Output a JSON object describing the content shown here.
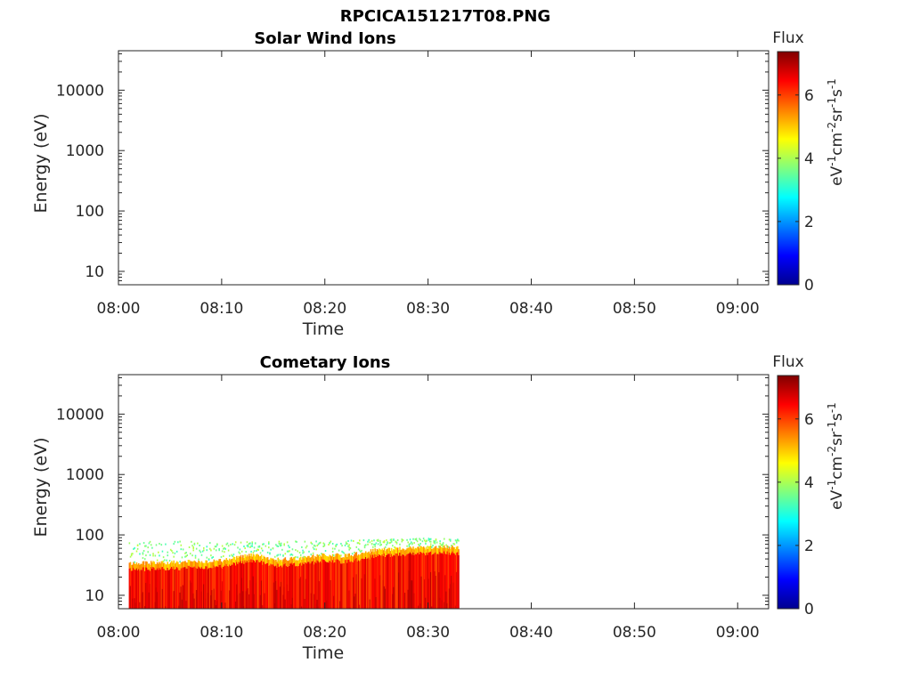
{
  "figure": {
    "title": "RPCICA151217T08.PNG"
  },
  "chart_data": [
    {
      "type": "heatmap",
      "title": "Solar Wind Ions",
      "xlabel": "Time",
      "ylabel": "Energy (eV)",
      "x_ticks": [
        "08:00",
        "08:10",
        "08:20",
        "08:30",
        "08:40",
        "08:50",
        "09:00"
      ],
      "xlim": [
        "08:00",
        "09:03"
      ],
      "y_scale": "log",
      "y_ticks": [
        10,
        100,
        1000,
        10000
      ],
      "y_tick_labels": [
        "10",
        "100",
        "1000",
        "10000"
      ],
      "ylim": [
        6,
        45000
      ],
      "colorbar": {
        "label": "Flux",
        "units_label": "eV-1cm-2sr-1s-1",
        "ticks": [
          "0",
          "2",
          "4",
          "6"
        ],
        "range": [
          0,
          7.4
        ],
        "colormap": "jet"
      },
      "data": []
    },
    {
      "type": "heatmap",
      "title": "Cometary Ions",
      "xlabel": "Time",
      "ylabel": "Energy (eV)",
      "x_ticks": [
        "08:00",
        "08:10",
        "08:20",
        "08:30",
        "08:40",
        "08:50",
        "09:00"
      ],
      "xlim": [
        "08:00",
        "09:03"
      ],
      "y_scale": "log",
      "y_ticks": [
        10,
        100,
        1000,
        10000
      ],
      "y_tick_labels": [
        "10",
        "100",
        "1000",
        "10000"
      ],
      "ylim": [
        6,
        45000
      ],
      "colorbar": {
        "label": "Flux",
        "units_label": "eV-1cm-2sr-1s-1",
        "ticks": [
          "0",
          "2",
          "4",
          "6"
        ],
        "range": [
          0,
          7.4
        ],
        "colormap": "jet"
      },
      "data": {
        "time_start": "08:01",
        "time_end": "08:33",
        "energy_min": 6,
        "profile": [
          {
            "time": "08:01",
            "upper_energy": 27,
            "sparse_upper_energy": 80
          },
          {
            "time": "08:05",
            "upper_energy": 28,
            "sparse_upper_energy": 80
          },
          {
            "time": "08:10",
            "upper_energy": 30,
            "sparse_upper_energy": 75
          },
          {
            "time": "08:13",
            "upper_energy": 38,
            "sparse_upper_energy": 80
          },
          {
            "time": "08:15",
            "upper_energy": 31,
            "sparse_upper_energy": 78
          },
          {
            "time": "08:18",
            "upper_energy": 33,
            "sparse_upper_energy": 80
          },
          {
            "time": "08:20",
            "upper_energy": 38,
            "sparse_upper_energy": 78
          },
          {
            "time": "08:22",
            "upper_energy": 36,
            "sparse_upper_energy": 80
          },
          {
            "time": "08:25",
            "upper_energy": 45,
            "sparse_upper_energy": 85
          },
          {
            "time": "08:28",
            "upper_energy": 48,
            "sparse_upper_energy": 85
          },
          {
            "time": "08:30",
            "upper_energy": 50,
            "sparse_upper_energy": 88
          },
          {
            "time": "08:33",
            "upper_energy": 50,
            "sparse_upper_energy": 85
          }
        ],
        "core_flux": 6.8,
        "edge_flux": 4.8,
        "sparse_flux": 3.2
      }
    }
  ]
}
